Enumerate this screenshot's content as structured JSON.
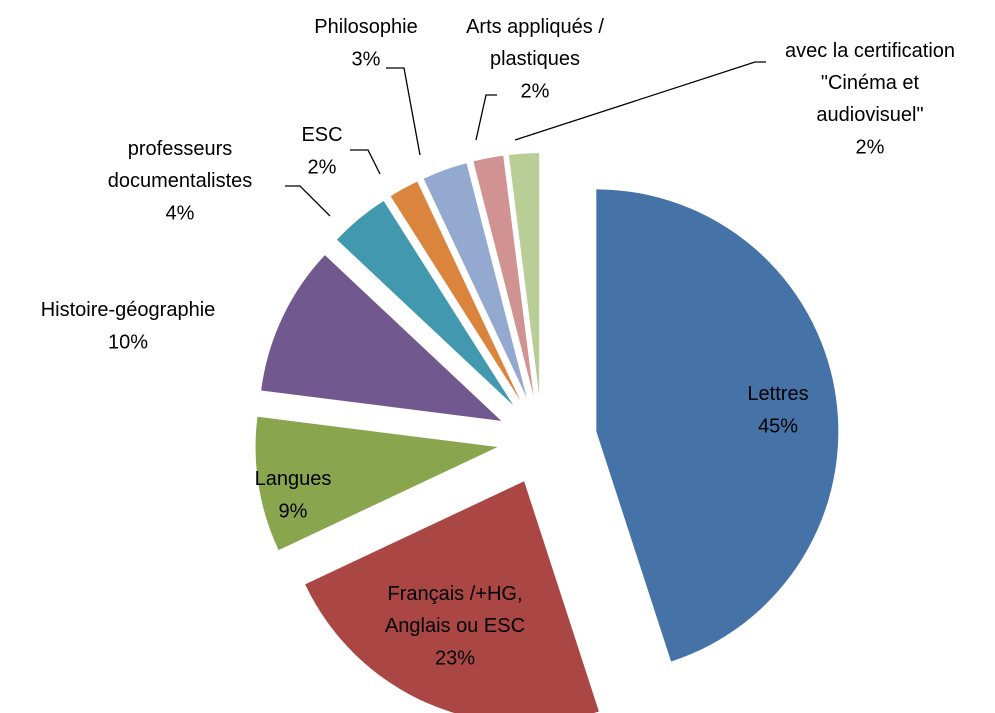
{
  "chart_data": {
    "type": "pie",
    "categories": [
      "Lettres",
      "Français /+HG,\nAnglais ou ESC",
      "Langues",
      "Histoire-géographie",
      "professeurs\ndocumentalistes",
      "ESC",
      "Philosophie",
      "Arts appliqués /\nplastiques",
      "avec la certification\n\"Cinéma et\naudiovisuel\""
    ],
    "values": [
      45,
      23,
      9,
      10,
      4,
      2,
      3,
      2,
      2
    ],
    "value_labels": [
      "45%",
      "23%",
      "9%",
      "10%",
      "4%",
      "2%",
      "3%",
      "2%",
      "2%"
    ],
    "colors": [
      "#4572a7",
      "#aa4643",
      "#89a54e",
      "#71588f",
      "#4198af",
      "#db843d",
      "#93a9cf",
      "#d19392",
      "#b9cd96"
    ]
  }
}
